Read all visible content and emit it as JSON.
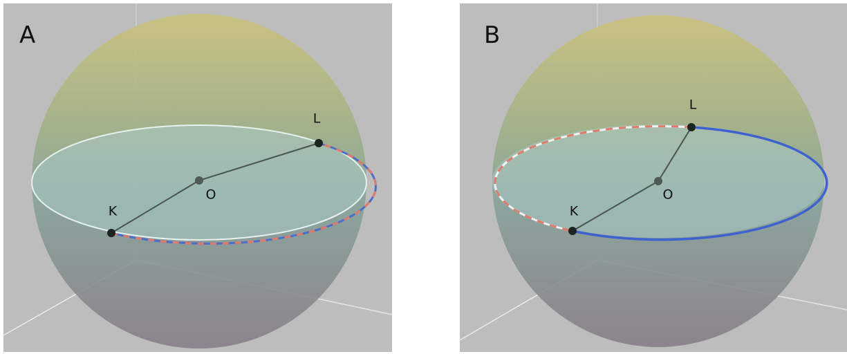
{
  "panels": [
    {
      "label": "A",
      "points": {
        "L": "L",
        "O": "O",
        "K": "K"
      }
    },
    {
      "label": "B",
      "points": {
        "L": "L",
        "O": "O",
        "K": "K"
      }
    }
  ]
}
